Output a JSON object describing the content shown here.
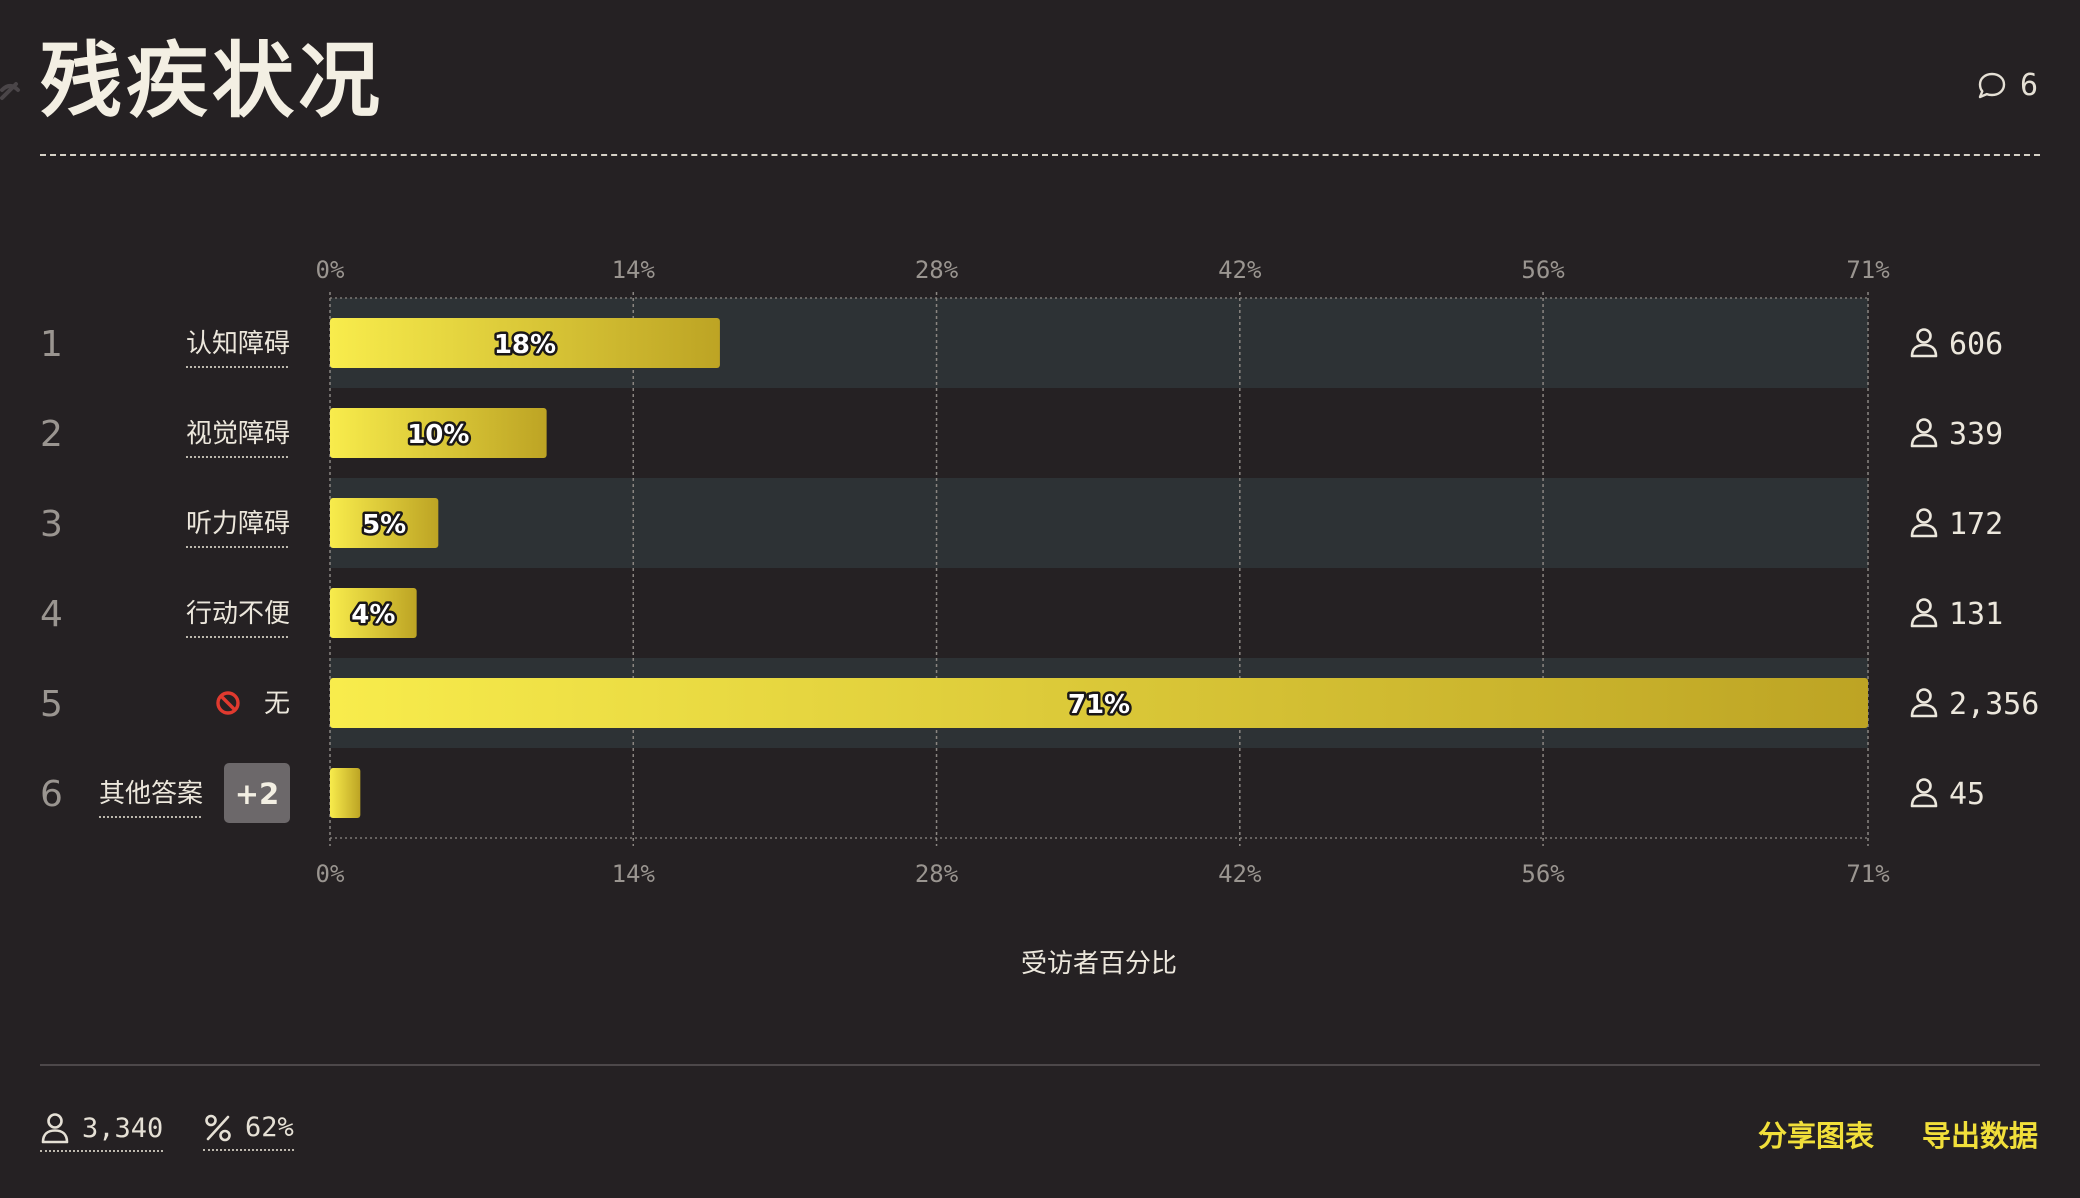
{
  "header": {
    "title": "残疾状况",
    "comment_count": "6"
  },
  "chart_data": {
    "type": "bar",
    "orientation": "horizontal",
    "categories": [
      "认知障碍",
      "视觉障碍",
      "听力障碍",
      "行动不便",
      "无",
      "其他答案"
    ],
    "ranks": [
      "1",
      "2",
      "3",
      "4",
      "5",
      "6"
    ],
    "values": [
      18,
      10,
      5,
      4,
      71,
      1.4
    ],
    "bar_labels": [
      "18%",
      "10%",
      "5%",
      "4%",
      "71%",
      ""
    ],
    "counts": [
      "606",
      "339",
      "172",
      "131",
      "2,356",
      "45"
    ],
    "other_badge": "+2",
    "xlim": [
      0,
      71
    ],
    "xticks": [
      0,
      14,
      28,
      42,
      56,
      71
    ],
    "xtick_labels": [
      "0%",
      "14%",
      "28%",
      "42%",
      "56%",
      "71%"
    ],
    "xlabel": "受访者百分比",
    "grid": true,
    "colors": {
      "bar_start": "#f8ec4c",
      "bar_end": "#bda424",
      "stripe": "#2d3235",
      "background": "#252123"
    }
  },
  "footer": {
    "respondents": "3,340",
    "response_rate": "62%",
    "share_label": "分享图表",
    "export_label": "导出数据"
  }
}
